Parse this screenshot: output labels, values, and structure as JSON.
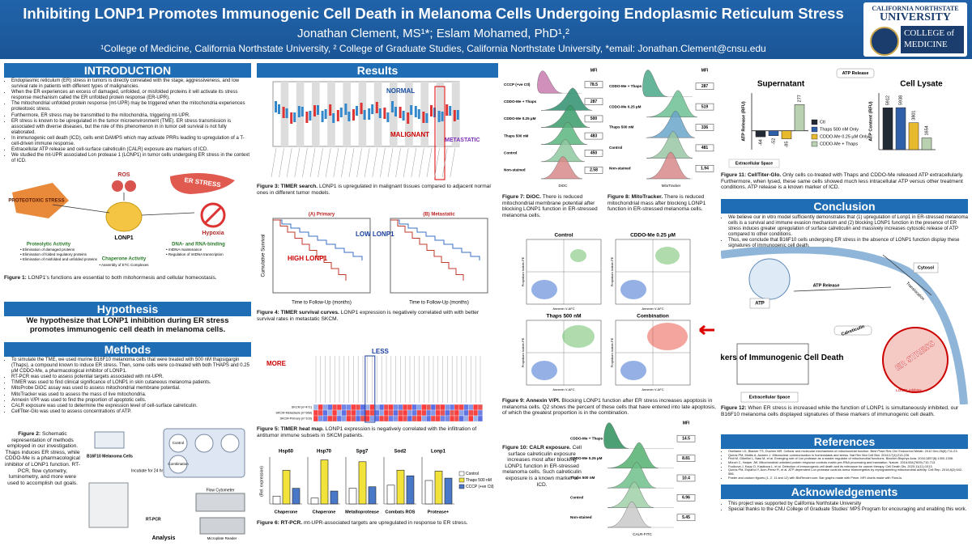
{
  "header": {
    "title": "Inhibiting LONP1 Promotes Immunogenic Cell Death in Melanoma Cells Undergoing Endoplasmic Reticulum Stress",
    "authors": "Jonathan Clement, MS¹*; Eslam Mohamed, PhD¹,²",
    "affiliations": "¹College of Medicine, California Northstate University, ² College of Graduate Studies, California Northstate University, *email: Jonathan.Clement@cnsu.edu",
    "logo": [
      "CALIFORNIA NORTHSTATE",
      "UNIVERSITY",
      "COLLEGE of",
      "MEDICINE"
    ]
  },
  "introduction": {
    "heading": "INTRODUCTION",
    "bullets": [
      "Endoplasmic reticulum (ER) stress in tumors is directly correlated with the stage, aggressiveness, and low survival rate in patients with different types of malignancies.",
      "When the ER experiences an excess of damaged, unfolded, or misfolded proteins it will activate its stress response mechanism called the ER unfolded protein response (ER-UPR).",
      "The mitochondrial unfolded protein response (mt-UPR) may be triggered when the mitochondria experiences proteotoxic stress.",
      "Furthermore, ER stress may be transmitted to the mitochondria, triggering mt-UPR.",
      "ER stress is known to be upregulated in the tumor microenvironment (TME). ER stress transmission is associated with diverse diseases, but the role of this phenomenon in in tumor cell survival is not fully elaborated.",
      "In immunogenic cell death (ICD), cells emit DAMPS which may activate PRRs leading to upregulation of a T-cell-driven immune response.",
      "Extracellular ATP release and cell-surface calreticulin (CALR) exposure are markers of ICD.",
      "We studied the mt-UPR associated Lon protease 1 (LONP1) in tumor cells undergoing ER stress in the context of ICD."
    ]
  },
  "figure1": {
    "labels": [
      "ROS",
      "ER STRESS",
      "PROTEOTOXIC STRESS",
      "LONP1",
      "Hypoxia",
      "Proteolytic Activity",
      "DNA- and RNA-binding",
      "Chaperone Activity"
    ],
    "items": [
      "• Elimination of damaged proteins",
      "• Elimination of folded regulatory proteins",
      "• Elimination of misfolded and unfolded proteins",
      "• mtDNA maintenance",
      "• Regulation of mtDNA transcription",
      "• Assembly of ETC Complexes"
    ],
    "label": "Figure 1:",
    "caption": "LONP1's functions are essential to both mitohormesis and cellular homeostasis."
  },
  "hypothesis": {
    "heading": "Hypothesis",
    "text": "We hypothesize that LONP1 inhibition during ER stress promotes immunogenic cell death in melanoma cells."
  },
  "methods": {
    "heading": "Methods",
    "bullets": [
      "To simulate the TME, we used murine B16F10 melanoma cells that were treated with 500 nM thapsigargin (Thaps), a compound known to induce ER stress. Then, some cells were co-treated with both THAPS and 0.25 µM CDDO-Me, a pharmacological inhibitor of LONP1.",
      "RT-PCR was used to assess potential targets associated with mt-UPR.",
      "TIMER was used to find clinical significance of LONP1 in skin cutaneous melanoma patients.",
      "MitoProbe DiOC assay was used to assess mitochondrial membrane potential.",
      "MitoTracker was used to assess the mass of live mitochondria.",
      "Annexin V/PI was used to find the proportion of apoptotic cells.",
      "CALR exposure was used to determine the expression level of cell-surface calreticulin.",
      "CellTiter-Glo was used to assess concentrations of ATP."
    ]
  },
  "figure2": {
    "label": "Figure 2:",
    "caption": "Schematic representation of methods employed in our investigation. Thaps induces ER stress, while CDDO-Me is a pharmacological inhibitor of LONP1 function. RT-PCR, flow cytometry, luminometry, and more were used to accomplish out goals.",
    "labels": [
      "B16F10 Melanoma Cells",
      "Incubate for 24 hrs",
      "Control",
      "Combination",
      "Flow Cytometer",
      "Microplate Reader",
      "RT-PCR",
      "Analysis"
    ]
  },
  "results": {
    "heading": "Results"
  },
  "figure3": {
    "labels": [
      "NORMAL",
      "MALIGNANT",
      "METASTATIC"
    ],
    "label": "Figure 3: TIMER search.",
    "caption": "LONP1 is upregulated in malignant tissues compared to adjacent normal ones in different tumor models."
  },
  "figure4": {
    "panels": [
      "(A) Primary",
      "(B) Metastatic"
    ],
    "labels": [
      "LOW LONP1",
      "HIGH LONP1"
    ],
    "y_label": "Cumulative Survival",
    "x_label": "Time to Follow-Up (months)",
    "label": "Figure 4: TIMER survival curves.",
    "caption": "LONP1 expression is negatively correlated with with better survival rates in metastatic SKCM."
  },
  "figure5": {
    "labels": [
      "MORE",
      "LESS"
    ],
    "rows": [
      "SKCM (n=471)",
      "SKCM-Metastasis (n=368)",
      "SKCM-Primary (n=103)"
    ],
    "label": "Figure 5: TIMER heat map.",
    "caption": "LONP1 expression is negatively correlated with the infiltration of antitumor immune subsets in SKCM patients."
  },
  "figure6": {
    "y_label": "(Rel. expression)",
    "legend": [
      {
        "name": "Control",
        "color": "#ffffff"
      },
      {
        "name": "Thaps 500 nM",
        "color": "#f2e33a"
      },
      {
        "name": "CCCP (+ve Ctl)",
        "color": "#4a78c8"
      }
    ],
    "panels": [
      {
        "name": "Hsp60",
        "role": "Chaperone",
        "ylim": [
          0,
          6
        ],
        "values": [
          1,
          4.3,
          2.0
        ]
      },
      {
        "name": "Hsp70",
        "role": "Chaperone",
        "ylim": [
          0,
          8
        ],
        "values": [
          1,
          7.5,
          2.2
        ]
      },
      {
        "name": "Spg7",
        "role": "Metalloprotease",
        "ylim": [
          0,
          3
        ],
        "values": [
          1,
          2.7,
          1.1
        ]
      },
      {
        "name": "Sod2",
        "role": "Combats ROS",
        "ylim": [
          0,
          2.5
        ],
        "values": [
          1,
          1.8,
          1.5
        ]
      },
      {
        "name": "Lonp1",
        "role": "Protease+",
        "ylim": [
          0,
          2
        ],
        "values": [
          1,
          1.4,
          1.1
        ]
      }
    ],
    "label": "Figure 6: RT-PCR.",
    "caption": "mt-UPR-associated targets are upregulated in response to ER stress."
  },
  "figure7": {
    "header": "MFI",
    "x_label": "DiOC",
    "rows": [
      {
        "name": "CCCP (+ve Ctl)",
        "mfi": 78.5
      },
      {
        "name": "CDDO-Me + Thaps",
        "mfi": 287
      },
      {
        "name": "CDDO-Me 0.25 µM",
        "mfi": 500
      },
      {
        "name": "Thaps 500 nM",
        "mfi": 483
      },
      {
        "name": "Control",
        "mfi": 450
      },
      {
        "name": "Non-stained",
        "mfi": 2.58
      }
    ],
    "label": "Figure 7: DiOC.",
    "caption": "There is reduced mitochondrial membrane potential after blocking LONP1 function in ER-stressed melanoma cells."
  },
  "figure8": {
    "header": "MFI",
    "x_label": "MitoTracker",
    "rows": [
      {
        "name": "CDDO-Me + Thaps",
        "mfi": 287
      },
      {
        "name": "CDDO-Me 0.25 µM",
        "mfi": 519
      },
      {
        "name": "Thaps 500 nM",
        "mfi": 336
      },
      {
        "name": "Control",
        "mfi": 481
      },
      {
        "name": "Non-stained",
        "mfi": 1.94
      }
    ],
    "label": "Figure 8: MitoTracker.",
    "caption": "There is reduced mitochondrial mass after blocking LONP1 function in ER-stressed melanoma cells."
  },
  "figure9": {
    "panels": [
      "Control",
      "CDDO-Me 0.25 µM",
      "Thaps 500 nM",
      "Combination"
    ],
    "y_label": "Propidium Iodide-PE",
    "x_label": "Annexin V-AFC",
    "label": "Figure 9: Annexin V/PI.",
    "caption": "Blocking LONP1 function after ER stress increases apoptosis in melanoma cells. Q2 shows the percent of these cells that have entered into late apoptosis, of which the greatest proportion is in the combination."
  },
  "figure10": {
    "header": "MFI",
    "x_label": "CALR-FITC",
    "rows": [
      {
        "name": "CDDO-Me + Thaps",
        "mfi": 14.5
      },
      {
        "name": "CDDO-Me 0.25 µM",
        "mfi": 8.81
      },
      {
        "name": "Thaps 500 nM",
        "mfi": 10.4
      },
      {
        "name": "Control",
        "mfi": 6.96
      },
      {
        "name": "Non-stained",
        "mfi": 5.45
      }
    ],
    "label": "Figure 10: CALR exposure.",
    "caption": "Cell surface calreticulin exposure increases most after blocking LONP1 function in ER-stressed melanoma cells. Such calreticulin exposure is a known marker of ICD."
  },
  "figure11": {
    "labels": [
      "ATP Release",
      "Extracellular Space"
    ],
    "legend": [
      {
        "name": "Ctl",
        "color": "#222a35"
      },
      {
        "name": "Thaps 500 nM Only",
        "color": "#2f5fa8"
      },
      {
        "name": "CDDO-Me 0.25 µM Only",
        "color": "#e7b92c"
      },
      {
        "name": "CDDO-Me + Thaps",
        "color": "#b9d1b0"
      }
    ],
    "panels": [
      {
        "title": "Supernatant",
        "y_label": "ATP Release (RFU)",
        "ylim": [
          -200,
          400
        ],
        "values": [
          -64,
          -52,
          -85,
          277
        ]
      },
      {
        "title": "Cell Lysate",
        "y_label": "ATP Content (RFU)",
        "ylim": [
          0,
          8000
        ],
        "values": [
          5912,
          5938,
          3801,
          1654
        ]
      }
    ],
    "label": "Figure 11: CellTiter-Glo.",
    "caption": "Only cells co-treated with Thaps and CDDO-Me released ATP extracellularly. Furthermore, when lysed, these same cells showed much less intracellular ATP versus other treatment conditions. ATP release is a known marker of ICD."
  },
  "conclusion": {
    "heading": "Conclusion",
    "bullets": [
      "We believe our in vitro model sufficiently demonstrates that (1) upregulation of Lonp1 in ER-stressed melanoma cells is a survival and immune evasion mechanism and (2) blocking LONP1 function in the presence of ER stress induces greater upregulation of surface calreticulin and massively increases cytosolic release of ATP compared to other conditions.",
      "Thus, we conclude that B16F10 cells undergoing ER stress in the absence of LONP1 function display these signatures of immunogenic cell death."
    ]
  },
  "figure12": {
    "labels": [
      "Cytosol",
      "ATP Release",
      "Translocation",
      "ATP",
      "Calreticulin",
      "ER STRESS",
      "LONP1 inhibitor",
      "↑Markers of Immunogenic Cell Death",
      "Extracellular Space"
    ],
    "label": "Figure 12:",
    "caption": "When ER stress is increased while the function of LONP1 is simultaneously inhibited, our B16F10 melanoma cells displayed signatures of these markers of immunogenic cell death."
  },
  "references": {
    "heading": "References",
    "items": [
      "Osellame LD, Blacker TS, Duchen MR. Cellular and molecular mechanisms of mitochondrial function. Best Pract Res Clin Endocrinol Metab. 2012 Dec;26(6):711-23.",
      "Quirós PM, Mottis A, Auwerx J. Mitonuclear communication in homeostasis and stress. Nat Rev Mol Cell Biol. 2016;17(4):213-226.",
      "Pinti M, Gibellini L, Nasi M, et al. Emerging role of Lon protease as a master regulator of mitochondrial functions. Biochim Biophys Acta. 2016;1857(8):1300-1306.",
      "Münch C, Harper JW. Mitochondrial unfolded protein response controls matrix pre-RNA processing and translation. Nature. 2016;534(7609):710-713.",
      "Fucikova J, Kepp O, Kasikova L, et al. Detection of immunogenic cell death and its relevance for cancer therapy. Cell Death Dis. 2020;11(11):1013.",
      "Quirós PM, Español Y, Acín-Pérez R, et al. ATP-dependent Lon protease controls tumor bioenergetics by reprogramming mitochondrial activity. Cell Rep. 2014;8(2):542-556.",
      "Poster and custom figures (1, 2, 11 and 12) with BioRender.com. Bar graphs made with Prism. MFI charts made with FlowJo."
    ]
  },
  "acknowledgements": {
    "heading": "Acknowledgements",
    "items": [
      "This project was supported by California Northstate University",
      "Special thanks to the CNU College of Graduate Studies' MPS Program for encouraging and enabling this work."
    ]
  }
}
